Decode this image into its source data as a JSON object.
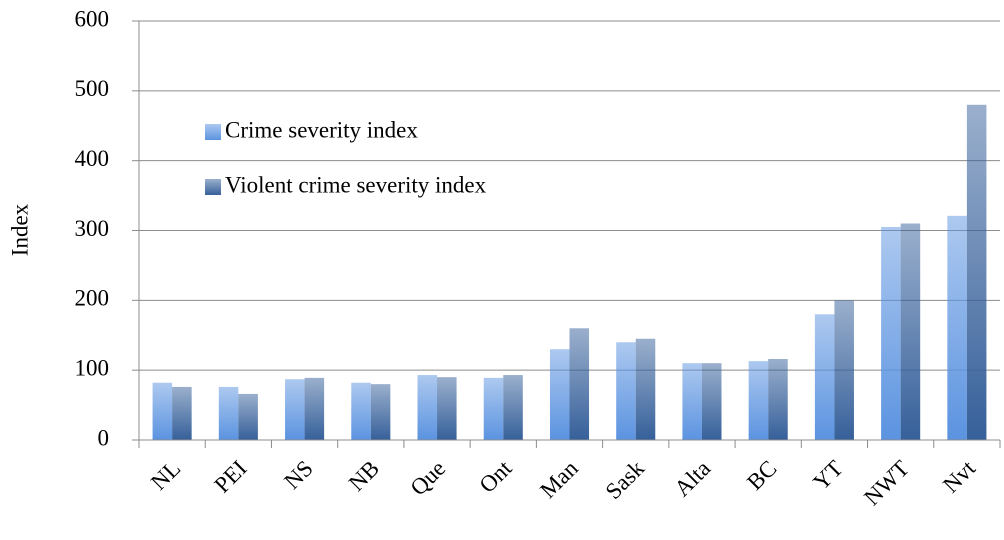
{
  "chart_data": {
    "type": "bar",
    "y_label": "Index",
    "categories": [
      "NL",
      "PEI",
      "NS",
      "NB",
      "Que",
      "Ont",
      "Man",
      "Sask",
      "Alta",
      "BC",
      "YT",
      "NWT",
      "Nvt"
    ],
    "series": [
      {
        "name": "Crime severity index",
        "color": "#5b93e0",
        "values": [
          82,
          76,
          87,
          82,
          93,
          89,
          130,
          140,
          110,
          113,
          180,
          305,
          321
        ]
      },
      {
        "name": "Violent crime severity index",
        "color": "#36609a",
        "values": [
          76,
          66,
          89,
          80,
          90,
          93,
          160,
          145,
          110,
          116,
          200,
          310,
          480
        ]
      }
    ],
    "ylim": [
      0,
      600
    ],
    "yticks": [
      0,
      100,
      200,
      300,
      400,
      500,
      600
    ],
    "grid": true,
    "legend": "upper left"
  }
}
